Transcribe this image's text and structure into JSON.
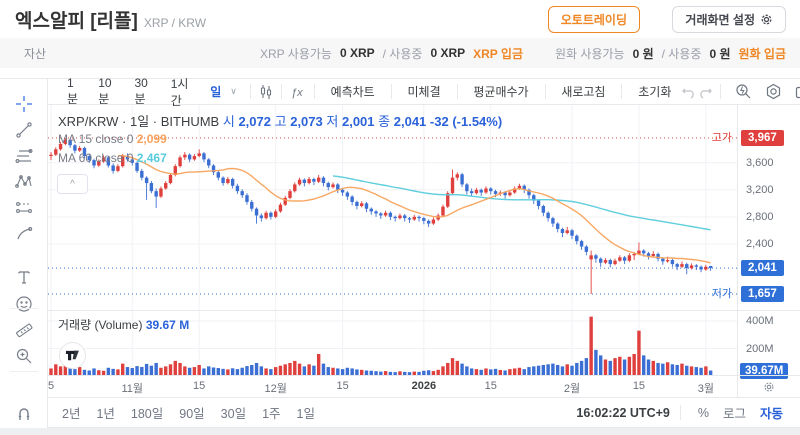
{
  "header": {
    "title": "엑스알피 [리플]",
    "subtitle": "XRP / KRW",
    "autotrading_btn": "오토트레이딩",
    "screen_settings_btn": "거래화면 설정"
  },
  "asset_bar": {
    "label": "자산",
    "xrp_available_label": "XRP 사용가능",
    "xrp_available_value": "0 XRP",
    "xrp_inuse_label": "/ 사용중",
    "xrp_inuse_value": "0 XRP",
    "xrp_deposit": "XRP 입금",
    "krw_available_label": "원화 사용가능",
    "krw_available_value": "0 원",
    "krw_inuse_label": "/ 사용중",
    "krw_inuse_value": "0 원",
    "krw_deposit": "원화 입금"
  },
  "toolbar": {
    "intervals": [
      "1분",
      "10분",
      "30분",
      "1시간",
      "일"
    ],
    "active_interval": "일",
    "chevron": "∨",
    "buttons": [
      "예측차트",
      "미체결",
      "평균매수가",
      "새로고침",
      "초기화"
    ],
    "icons": [
      "candle-style-icon",
      "fx-indicator-icon"
    ],
    "history_icons": [
      "undo-icon",
      "redo-icon"
    ],
    "right_icons": [
      "search-history-icon",
      "chart-settings-icon",
      "snapshot-icon",
      "fullscreen-icon"
    ]
  },
  "left_toolbar_icons": [
    "crosshair-icon",
    "trendline-icon",
    "fib-retracement-icon",
    "xabcd-pattern-icon",
    "forecast-icon",
    "brush-icon",
    "text-tool-icon",
    "emoji-icon",
    "ruler-icon",
    "zoom-in-icon",
    "magnet-icon",
    "edit-icon"
  ],
  "legend": {
    "symbol_line": "XRP/KRW · 1일 · BITHUMB",
    "open_label": "시",
    "open": "2,072",
    "high_label": "고",
    "high": "2,073",
    "low_label": "저",
    "low": "2,001",
    "close_label": "종",
    "close": "2,041",
    "change": "-32 (-1.54%)",
    "ma15_label": "MA 15 close 0",
    "ma15_value": "2,099",
    "ma60_label": "MA 60 close 0",
    "ma60_value": "2,467",
    "collapse_glyph": "^"
  },
  "volume_legend": {
    "label": "거래량 (Volume)",
    "value": "39.67 M"
  },
  "price_axis": {
    "high_label": "고가",
    "high_badge": "3,967",
    "tick_labels": [
      "3,600",
      "3,200",
      "2,800",
      "2,400"
    ],
    "current_badge": "2,041",
    "low_label": "저가",
    "low_badge": "1,657"
  },
  "volume_axis": {
    "tick_labels": [
      "400M",
      "200M"
    ],
    "current_badge": "39.67M"
  },
  "bottom_bar": {
    "ranges": [
      "2년",
      "1년",
      "180일",
      "90일",
      "30일",
      "1주",
      "1일"
    ],
    "time": "16:02:22 UTC+9",
    "percent": "%",
    "log": "로그",
    "auto": "자동"
  },
  "colors": {
    "up": "#e0403d",
    "down": "#3b6fd3",
    "badge_up": "#e0403d",
    "badge_down": "#2e6fd8",
    "ma15": "#f7a35c",
    "ma60": "#56cbdb",
    "accent_orange": "#ef8725",
    "accent_blue": "#2a62d9",
    "grid": "#f1f2f5"
  },
  "chart_data": {
    "type": "candlestick",
    "symbol": "XRP/KRW",
    "interval": "1일",
    "exchange": "BITHUMB",
    "ohlc_current": {
      "open": 2072,
      "high": 2073,
      "low": 2001,
      "close": 2041,
      "change": -32,
      "change_pct": -1.54
    },
    "session_high": 3967,
    "session_low": 1657,
    "last_price": 2041,
    "last_volume_m": 39.67,
    "ma": [
      {
        "period": 15,
        "value": 2099
      },
      {
        "period": 60,
        "value": 2467
      }
    ],
    "ylim": [
      1420,
      4456
    ],
    "price_ticks": [
      3600,
      3200,
      2800,
      2400
    ],
    "volume_ylim_m": [
      0,
      473
    ],
    "volume_ticks_m": [
      400,
      200
    ],
    "time_ticks": [
      {
        "i": 0,
        "label": "5"
      },
      {
        "i": 17,
        "label": "11월"
      },
      {
        "i": 31,
        "label": "15"
      },
      {
        "i": 47,
        "label": "12월"
      },
      {
        "i": 61,
        "label": "15"
      },
      {
        "i": 78,
        "label": "2026",
        "bold": true
      },
      {
        "i": 92,
        "label": "15"
      },
      {
        "i": 109,
        "label": "2월"
      },
      {
        "i": 123,
        "label": "15"
      },
      {
        "i": 137,
        "label": "3월"
      }
    ],
    "candles": [
      [
        3700,
        3760,
        3640,
        3720,
        55
      ],
      [
        3720,
        3830,
        3700,
        3800,
        85
      ],
      [
        3800,
        3910,
        3780,
        3880,
        70
      ],
      [
        3880,
        3967,
        3860,
        3940,
        95
      ],
      [
        3940,
        3955,
        3820,
        3860,
        60
      ],
      [
        3860,
        3880,
        3740,
        3780,
        50
      ],
      [
        3780,
        3850,
        3760,
        3820,
        65
      ],
      [
        3820,
        3840,
        3670,
        3700,
        45
      ],
      [
        3700,
        3730,
        3600,
        3640,
        40
      ],
      [
        3640,
        3660,
        3520,
        3560,
        55
      ],
      [
        3560,
        3650,
        3540,
        3620,
        42
      ],
      [
        3620,
        3710,
        3600,
        3680,
        38
      ],
      [
        3680,
        3700,
        3530,
        3560,
        60
      ],
      [
        3560,
        3590,
        3440,
        3480,
        52
      ],
      [
        3480,
        3580,
        3460,
        3550,
        48
      ],
      [
        3550,
        3730,
        3530,
        3700,
        90
      ],
      [
        3700,
        3740,
        3620,
        3650,
        65
      ],
      [
        3650,
        3680,
        3560,
        3600,
        58
      ],
      [
        3600,
        3620,
        3450,
        3480,
        72
      ],
      [
        3480,
        3510,
        3340,
        3380,
        66
      ],
      [
        3380,
        3400,
        3050,
        3300,
        88
      ],
      [
        3300,
        3330,
        3150,
        3180,
        75
      ],
      [
        3180,
        3220,
        2930,
        3100,
        95
      ],
      [
        3100,
        3250,
        3080,
        3220,
        60
      ],
      [
        3220,
        3330,
        3200,
        3300,
        70
      ],
      [
        3300,
        3450,
        3280,
        3420,
        85
      ],
      [
        3420,
        3580,
        3400,
        3550,
        110
      ],
      [
        3550,
        3710,
        3530,
        3680,
        95
      ],
      [
        3680,
        3760,
        3640,
        3720,
        70
      ],
      [
        3720,
        3740,
        3610,
        3650,
        60
      ],
      [
        3650,
        3730,
        3630,
        3700,
        65
      ],
      [
        3700,
        3800,
        3680,
        3740,
        80
      ],
      [
        3740,
        3760,
        3610,
        3650,
        55
      ],
      [
        3650,
        3670,
        3520,
        3560,
        70
      ],
      [
        3560,
        3580,
        3420,
        3460,
        62
      ],
      [
        3460,
        3490,
        3340,
        3380,
        58
      ],
      [
        3380,
        3400,
        3260,
        3300,
        52
      ],
      [
        3300,
        3390,
        3280,
        3360,
        48
      ],
      [
        3360,
        3380,
        3220,
        3260,
        56
      ],
      [
        3260,
        3290,
        3140,
        3180,
        50
      ],
      [
        3180,
        3210,
        3080,
        3120,
        60
      ],
      [
        3120,
        3150,
        2980,
        3020,
        72
      ],
      [
        3020,
        3050,
        2880,
        2920,
        80
      ],
      [
        2920,
        2940,
        2700,
        2820,
        95
      ],
      [
        2820,
        2850,
        2730,
        2780,
        70
      ],
      [
        2780,
        2890,
        2760,
        2860,
        55
      ],
      [
        2860,
        2880,
        2760,
        2800,
        50
      ],
      [
        2800,
        2910,
        2780,
        2880,
        65
      ],
      [
        2880,
        3010,
        2860,
        2980,
        75
      ],
      [
        2980,
        3110,
        2960,
        3080,
        85
      ],
      [
        3080,
        3210,
        3060,
        3180,
        95
      ],
      [
        3180,
        3310,
        3160,
        3280,
        110
      ],
      [
        3280,
        3380,
        3260,
        3350,
        90
      ],
      [
        3350,
        3370,
        3250,
        3300,
        70
      ],
      [
        3300,
        3390,
        3280,
        3360,
        85
      ],
      [
        3360,
        3380,
        3270,
        3320,
        75
      ],
      [
        3320,
        3420,
        3300,
        3380,
        160
      ],
      [
        3380,
        3400,
        3250,
        3300,
        90
      ],
      [
        3300,
        3320,
        3190,
        3240,
        65
      ],
      [
        3240,
        3310,
        3220,
        3280,
        60
      ],
      [
        3280,
        3300,
        3150,
        3200,
        55
      ],
      [
        3200,
        3230,
        3110,
        3160,
        50
      ],
      [
        3160,
        3180,
        3050,
        3100,
        60
      ],
      [
        3100,
        3120,
        2970,
        3020,
        55
      ],
      [
        3020,
        3040,
        2910,
        2960,
        48
      ],
      [
        2960,
        3030,
        2940,
        3000,
        45
      ],
      [
        3000,
        3020,
        2870,
        2920,
        40
      ],
      [
        2920,
        2940,
        2830,
        2880,
        38
      ],
      [
        2880,
        2900,
        2800,
        2850,
        35
      ],
      [
        2850,
        2870,
        2770,
        2820,
        32
      ],
      [
        2820,
        2890,
        2800,
        2860,
        36
      ],
      [
        2860,
        2880,
        2750,
        2800,
        30
      ],
      [
        2800,
        2820,
        2730,
        2780,
        28
      ],
      [
        2780,
        2850,
        2760,
        2820,
        34
      ],
      [
        2820,
        2840,
        2730,
        2780,
        30
      ],
      [
        2780,
        2800,
        2710,
        2760,
        28
      ],
      [
        2760,
        2830,
        2740,
        2800,
        32
      ],
      [
        2800,
        2820,
        2730,
        2780,
        30
      ],
      [
        2780,
        2800,
        2690,
        2740,
        38
      ],
      [
        2740,
        2760,
        2650,
        2700,
        42
      ],
      [
        2700,
        2790,
        2680,
        2760,
        36
      ],
      [
        2760,
        2850,
        2740,
        2820,
        45
      ],
      [
        2820,
        2980,
        2800,
        2950,
        70
      ],
      [
        2950,
        3180,
        2930,
        3150,
        95
      ],
      [
        3150,
        3500,
        3130,
        3380,
        130
      ],
      [
        3380,
        3460,
        3340,
        3430,
        110
      ],
      [
        3430,
        3450,
        3240,
        3280,
        90
      ],
      [
        3280,
        3300,
        3130,
        3180,
        70
      ],
      [
        3180,
        3220,
        3100,
        3150,
        55
      ],
      [
        3150,
        3230,
        3130,
        3200,
        50
      ],
      [
        3200,
        3220,
        3110,
        3160,
        45
      ],
      [
        3160,
        3250,
        3140,
        3220,
        55
      ],
      [
        3220,
        3240,
        3130,
        3180,
        48
      ],
      [
        3180,
        3200,
        3090,
        3140,
        52
      ],
      [
        3140,
        3190,
        3110,
        3160,
        44
      ],
      [
        3160,
        3180,
        3070,
        3120,
        40
      ],
      [
        3120,
        3190,
        3100,
        3160,
        50
      ],
      [
        3160,
        3250,
        3140,
        3220,
        55
      ],
      [
        3220,
        3290,
        3200,
        3260,
        60
      ],
      [
        3260,
        3280,
        3150,
        3200,
        50
      ],
      [
        3200,
        3220,
        3070,
        3120,
        65
      ],
      [
        3120,
        3140,
        2990,
        3040,
        70
      ],
      [
        3040,
        3060,
        2910,
        2960,
        75
      ],
      [
        2960,
        2980,
        2810,
        2860,
        80
      ],
      [
        2860,
        2880,
        2730,
        2780,
        85
      ],
      [
        2780,
        2800,
        2650,
        2700,
        90
      ],
      [
        2700,
        2720,
        2570,
        2620,
        80
      ],
      [
        2620,
        2640,
        2500,
        2560,
        70
      ],
      [
        2560,
        2650,
        2540,
        2600,
        85
      ],
      [
        2600,
        2620,
        2470,
        2520,
        75
      ],
      [
        2520,
        2540,
        2390,
        2440,
        95
      ],
      [
        2440,
        2460,
        2310,
        2360,
        110
      ],
      [
        2360,
        2380,
        2230,
        2280,
        130
      ],
      [
        2170,
        2300,
        1657,
        2230,
        432
      ],
      [
        2230,
        2250,
        2120,
        2180,
        190
      ],
      [
        2180,
        2200,
        2060,
        2120,
        150
      ],
      [
        2120,
        2190,
        2100,
        2160,
        120
      ],
      [
        2160,
        2180,
        2050,
        2100,
        110
      ],
      [
        2100,
        2180,
        2080,
        2150,
        130
      ],
      [
        2150,
        2230,
        2130,
        2200,
        140
      ],
      [
        2200,
        2220,
        2100,
        2150,
        120
      ],
      [
        2150,
        2260,
        2130,
        2230,
        140
      ],
      [
        2230,
        2280,
        2160,
        2250,
        160
      ],
      [
        2250,
        2420,
        2230,
        2300,
        330
      ],
      [
        2300,
        2320,
        2210,
        2260,
        150
      ],
      [
        2260,
        2280,
        2170,
        2220,
        120
      ],
      [
        2220,
        2290,
        2200,
        2250,
        110
      ],
      [
        2250,
        2270,
        2140,
        2180,
        95
      ],
      [
        2180,
        2200,
        2090,
        2140,
        90
      ],
      [
        2140,
        2210,
        2120,
        2160,
        100
      ],
      [
        2160,
        2180,
        2060,
        2100,
        85
      ],
      [
        2100,
        2120,
        2010,
        2060,
        80
      ],
      [
        2060,
        2140,
        2040,
        2100,
        90
      ],
      [
        2100,
        2120,
        1950,
        2040,
        75
      ],
      [
        2040,
        2110,
        2020,
        2080,
        70
      ],
      [
        2080,
        2100,
        2010,
        2060,
        65
      ],
      [
        2060,
        2080,
        1980,
        2020,
        60
      ],
      [
        2020,
        2090,
        2000,
        2060,
        70
      ],
      [
        2072,
        2073,
        2001,
        2041,
        39.67
      ]
    ]
  }
}
